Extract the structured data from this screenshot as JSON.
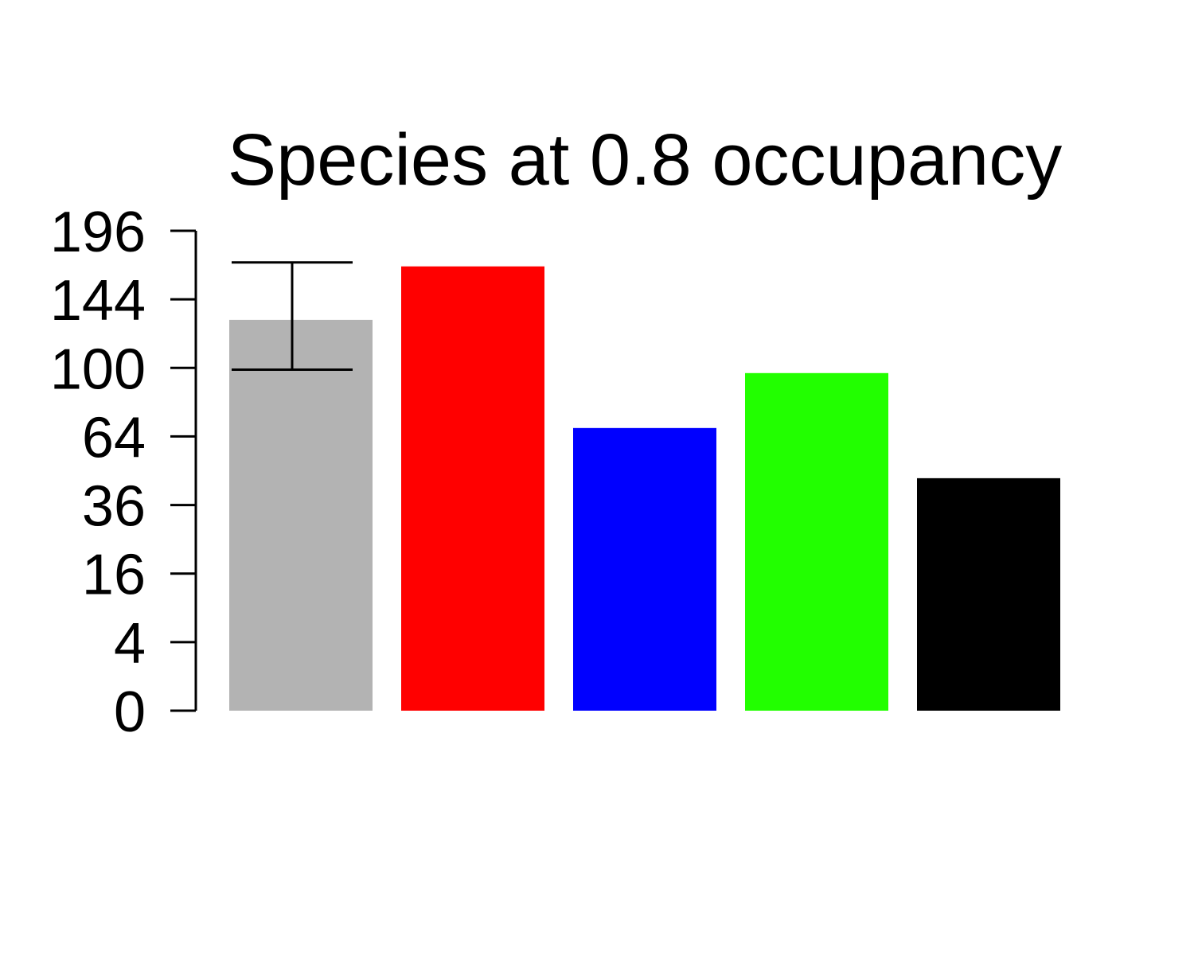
{
  "chart_data": {
    "type": "bar",
    "title": "Species at 0.8 occupancy",
    "xlabel": "",
    "ylabel": "",
    "y_scale": "sqrt",
    "ylim": [
      0,
      196
    ],
    "yticks": [
      0,
      4,
      16,
      36,
      64,
      100,
      144,
      196
    ],
    "categories": [
      "",
      "",
      "",
      "",
      ""
    ],
    "values": [
      130,
      168,
      68,
      97,
      46
    ],
    "colors": [
      "#b3b3b3",
      "#ff0000",
      "#0000ff",
      "#22ff00",
      "#000000"
    ],
    "error_bars": [
      {
        "index": 0,
        "low": 99,
        "high": 171
      }
    ],
    "grid": false,
    "legend": "none"
  }
}
